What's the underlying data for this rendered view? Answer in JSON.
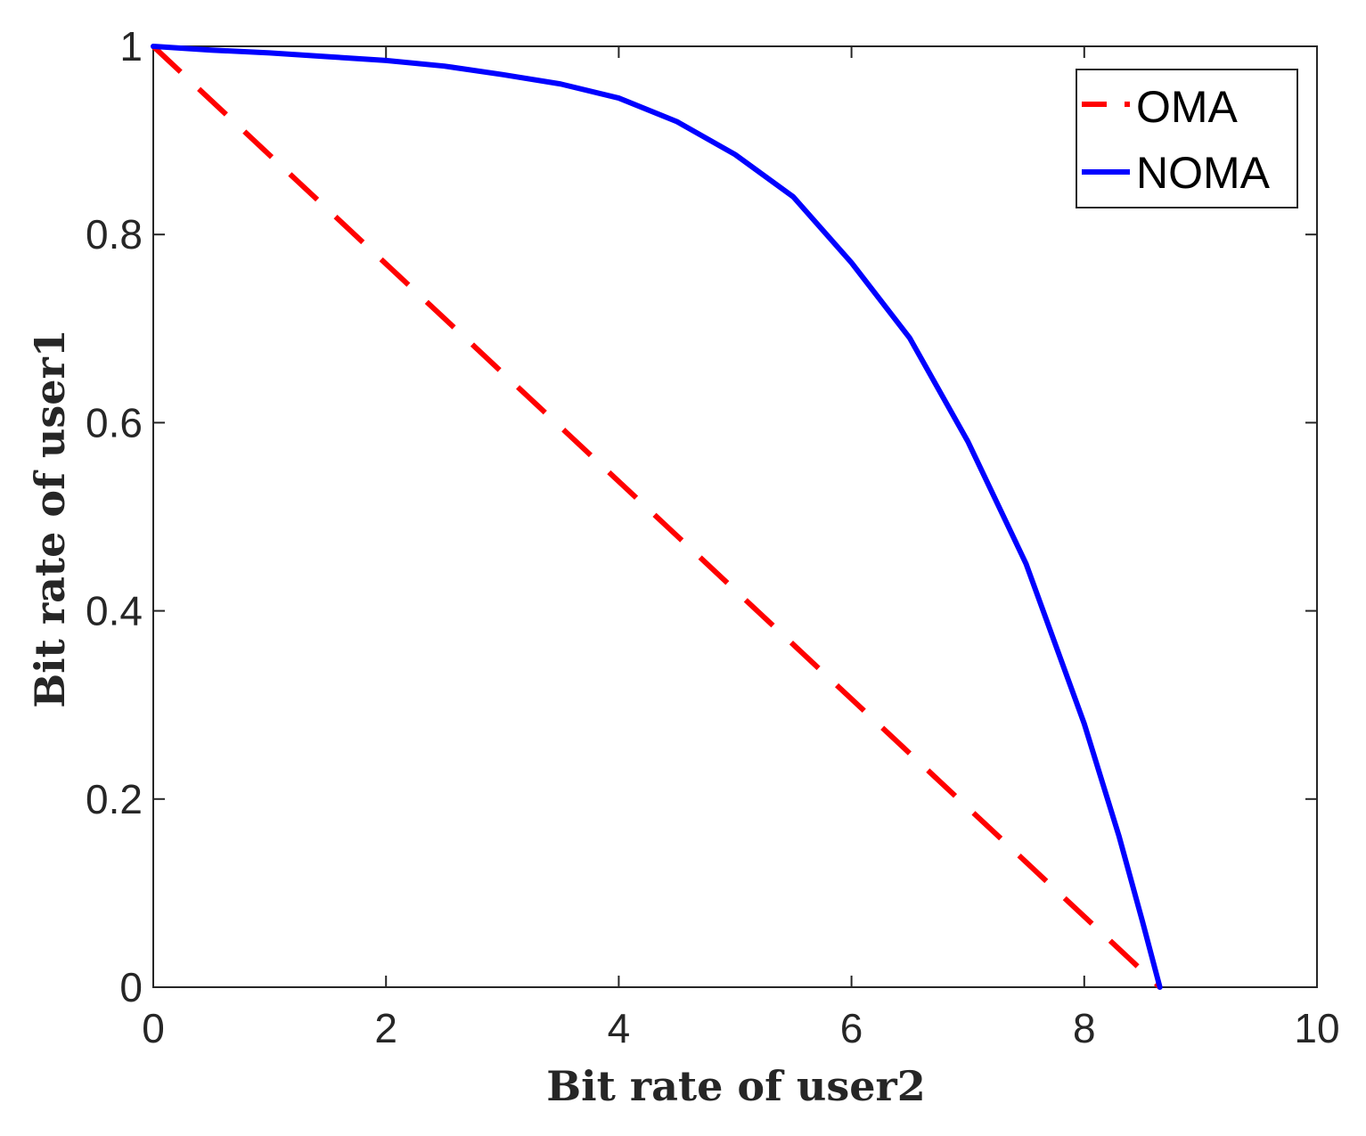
{
  "chart_data": {
    "type": "line",
    "title": "",
    "xlabel": "Bit rate of user2",
    "ylabel": "Bit rate of user1",
    "xlim": [
      0,
      10
    ],
    "ylim": [
      0,
      1
    ],
    "x_ticks": [
      0,
      2,
      4,
      6,
      8,
      10
    ],
    "y_ticks": [
      0,
      0.2,
      0.4,
      0.6,
      0.8,
      1
    ],
    "x_tick_labels": [
      "0",
      "2",
      "4",
      "6",
      "8",
      "10"
    ],
    "y_tick_labels": [
      "0",
      "0.2",
      "0.4",
      "0.6",
      "0.8",
      "1"
    ],
    "grid": false,
    "legend_position": "top-right",
    "series": [
      {
        "name": "OMA",
        "style": "dashed",
        "color": "#ff0000",
        "x": [
          0,
          8.65
        ],
        "y": [
          1,
          0
        ]
      },
      {
        "name": "NOMA",
        "style": "solid",
        "color": "#0000ff",
        "x": [
          0,
          0.5,
          1,
          1.5,
          2,
          2.5,
          3,
          3.5,
          4,
          4.5,
          5,
          5.5,
          6,
          6.5,
          7,
          7.5,
          8,
          8.3,
          8.5,
          8.65
        ],
        "y": [
          1,
          0.996,
          0.993,
          0.989,
          0.985,
          0.979,
          0.97,
          0.96,
          0.945,
          0.92,
          0.885,
          0.84,
          0.77,
          0.69,
          0.58,
          0.45,
          0.28,
          0.16,
          0.07,
          0
        ]
      }
    ]
  }
}
